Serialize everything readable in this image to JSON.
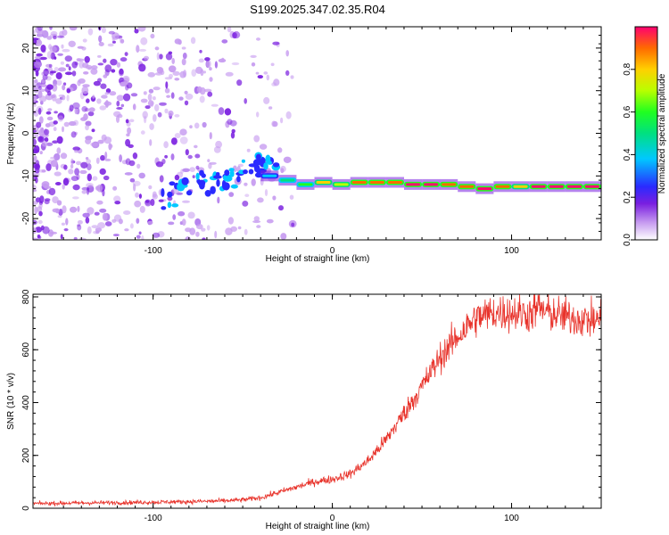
{
  "title": "S199.2025.347.02.35.R04",
  "colors": {
    "trace": "#e8332b",
    "ridge_low": "#6a1fd6"
  },
  "chart_data": [
    {
      "type": "heatmap",
      "xlabel": "Height of straight line (km)",
      "ylabel": "Frequency (Hz)",
      "xlim": [
        -167,
        150
      ],
      "ylim": [
        -25,
        25
      ],
      "xticks": [
        -100,
        0,
        100
      ],
      "yticks": [
        -20,
        -10,
        0,
        10,
        20
      ],
      "colorbar": {
        "label": "Normalized spectral amplitude",
        "range": [
          0,
          1
        ],
        "ticks": [
          "0.0",
          "0.2",
          "0.4",
          "0.6",
          "0.8"
        ],
        "colormap": "rainbow (purple to red)"
      },
      "ridge": {
        "description": "narrow high-amplitude line near -12 Hz for heights above about -35 km; scattered noise below",
        "height": [
          -35,
          -25,
          -15,
          -5,
          5,
          15,
          25,
          35,
          45,
          55,
          65,
          75,
          85,
          95,
          105,
          115,
          125,
          135,
          145
        ],
        "frequency": [
          -10,
          -11,
          -12,
          -11.5,
          -12,
          -11.5,
          -11.5,
          -11.5,
          -12,
          -12,
          -12,
          -12.5,
          -13,
          -12.5,
          -12.5,
          -12.5,
          -12.5,
          -12.5,
          -12.5
        ],
        "amplitude": [
          0.3,
          0.5,
          0.6,
          0.75,
          0.7,
          0.85,
          0.85,
          0.85,
          0.95,
          0.95,
          0.9,
          0.85,
          0.95,
          0.9,
          0.8,
          0.95,
          0.95,
          0.95,
          0.95
        ]
      }
    },
    {
      "type": "line",
      "xlabel": "Height of straight line (km)",
      "ylabel": "SNR (10 * v/v)",
      "xlim": [
        -167,
        150
      ],
      "ylim": [
        0,
        810
      ],
      "xticks": [
        -100,
        0,
        100
      ],
      "yticks": [
        0,
        200,
        400,
        600,
        800
      ],
      "series": [
        {
          "x": [
            -167,
            -140,
            -110,
            -80,
            -60,
            -50,
            -40,
            -30,
            -20,
            -10,
            0,
            10,
            20,
            30,
            40,
            50,
            60,
            70,
            80,
            90,
            100,
            110,
            115,
            120,
            130,
            140,
            150
          ],
          "y": [
            18,
            20,
            22,
            25,
            28,
            32,
            40,
            60,
            80,
            100,
            110,
            130,
            180,
            260,
            360,
            460,
            570,
            650,
            720,
            740,
            740,
            735,
            760,
            740,
            725,
            715,
            710
          ]
        }
      ]
    }
  ]
}
